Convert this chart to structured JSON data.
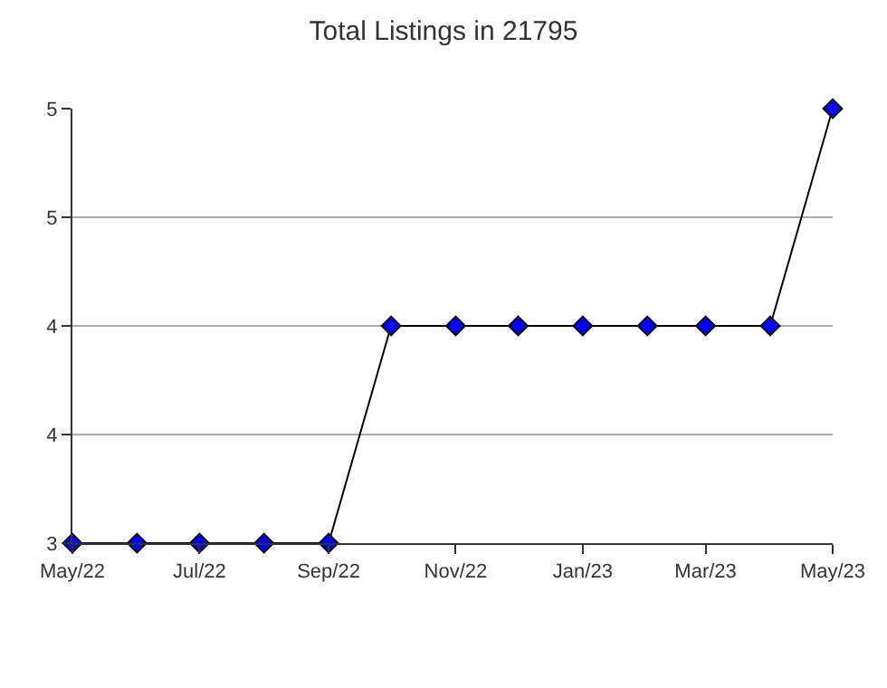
{
  "chart_data": {
    "type": "line",
    "title": "Total Listings in 21795",
    "x": [
      "2022-05",
      "2022-06",
      "2022-07",
      "2022-08",
      "2022-09",
      "2022-10",
      "2022-11",
      "2022-12",
      "2023-01",
      "2023-02",
      "2023-03",
      "2023-04",
      "2023-05"
    ],
    "series": [
      {
        "color": "#0000ff",
        "values": [
          3,
          3,
          3,
          3,
          3,
          4,
          4,
          4,
          4,
          4,
          4,
          4,
          5
        ]
      }
    ],
    "xlim": [
      "2022-05",
      "2023-05"
    ],
    "xticks": [
      {
        "value": "2022-05",
        "label": "May/22"
      },
      {
        "value": "2022-07",
        "label": "Jul/22"
      },
      {
        "value": "2022-09",
        "label": "Sep/22"
      },
      {
        "value": "2022-11",
        "label": "Nov/22"
      },
      {
        "value": "2023-01",
        "label": "Jan/23"
      },
      {
        "value": "2023-03",
        "label": "Mar/23"
      },
      {
        "value": "2023-05",
        "label": "May/23"
      }
    ],
    "ylim": [
      3,
      5
    ],
    "yticks": [
      3,
      {
        "value": 3.5,
        "label": "4"
      },
      4,
      {
        "value": 4.5,
        "label": "5"
      },
      5
    ],
    "grid": "y",
    "marker": "diamond",
    "line_style": "solid",
    "legend": false
  }
}
